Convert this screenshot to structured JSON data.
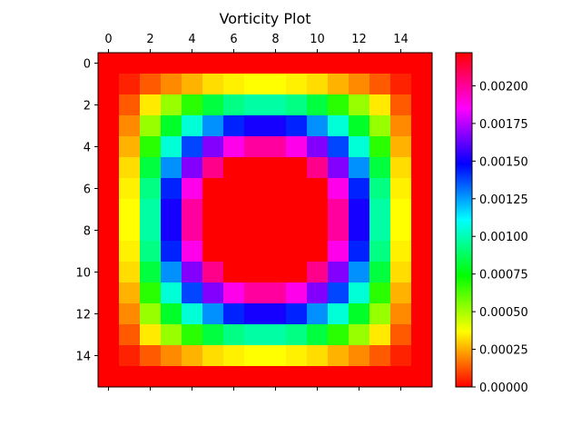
{
  "chart_data": {
    "type": "heatmap",
    "title": "Vorticity Plot",
    "xlabel": "",
    "ylabel": "",
    "grid": false,
    "x_axis_position": "top",
    "xticks": [
      0,
      2,
      4,
      6,
      8,
      10,
      12,
      14
    ],
    "yticks": [
      0,
      2,
      4,
      6,
      8,
      10,
      12,
      14
    ],
    "xlim": [
      -0.5,
      15.5
    ],
    "ylim": [
      15.5,
      -0.5
    ],
    "colormap": "hsv",
    "colorbar": {
      "range": [
        0.0,
        0.00222
      ],
      "ticks": [
        "0.00000",
        "0.00025",
        "0.00050",
        "0.00075",
        "0.00100",
        "0.00125",
        "0.00150",
        "0.00175",
        "0.00200"
      ],
      "tick_values": [
        0.0,
        0.00025,
        0.0005,
        0.00075,
        0.001,
        0.00125,
        0.0015,
        0.00175,
        0.002
      ]
    },
    "rows": 16,
    "cols": 16,
    "values": [
      [
        0,
        0,
        0,
        0,
        0,
        0,
        0,
        0,
        0,
        0,
        0,
        0,
        0,
        0,
        0,
        0
      ],
      [
        0,
        5e-05,
        0.00013,
        0.0002,
        0.00026,
        0.00032,
        0.00035,
        0.00037,
        0.00037,
        0.00035,
        0.00032,
        0.00026,
        0.0002,
        0.00013,
        5e-05,
        0
      ],
      [
        0,
        0.00013,
        0.00034,
        0.00052,
        0.00068,
        0.00083,
        0.00093,
        0.00098,
        0.00098,
        0.00093,
        0.00083,
        0.00068,
        0.00052,
        0.00034,
        0.00013,
        0
      ],
      [
        0,
        0.0002,
        0.00052,
        0.0008,
        0.00105,
        0.00127,
        0.00143,
        0.00151,
        0.00151,
        0.00143,
        0.00127,
        0.00105,
        0.0008,
        0.00052,
        0.0002,
        0
      ],
      [
        0,
        0.00026,
        0.00068,
        0.00105,
        0.00138,
        0.00167,
        0.00188,
        0.00199,
        0.00199,
        0.00188,
        0.00167,
        0.00138,
        0.00105,
        0.00068,
        0.00026,
        0
      ],
      [
        0,
        0.00032,
        0.00083,
        0.00127,
        0.00167,
        0.00202,
        0.00228,
        0.0024,
        0.0024,
        0.00228,
        0.00202,
        0.00167,
        0.00127,
        0.00083,
        0.00032,
        0
      ],
      [
        0,
        0.00035,
        0.00093,
        0.00143,
        0.00188,
        0.00228,
        0.00256,
        0.0027,
        0.0027,
        0.00256,
        0.00228,
        0.00188,
        0.00143,
        0.00093,
        0.00035,
        0
      ],
      [
        0,
        0.00037,
        0.00098,
        0.00151,
        0.00199,
        0.0024,
        0.0027,
        0.00285,
        0.00285,
        0.0027,
        0.0024,
        0.00199,
        0.00151,
        0.00098,
        0.00037,
        0
      ],
      [
        0,
        0.00037,
        0.00098,
        0.00151,
        0.00199,
        0.0024,
        0.0027,
        0.00285,
        0.00285,
        0.0027,
        0.0024,
        0.00199,
        0.00151,
        0.00098,
        0.00037,
        0
      ],
      [
        0,
        0.00035,
        0.00093,
        0.00143,
        0.00188,
        0.00228,
        0.00256,
        0.0027,
        0.0027,
        0.00256,
        0.00228,
        0.00188,
        0.00143,
        0.00093,
        0.00035,
        0
      ],
      [
        0,
        0.00032,
        0.00083,
        0.00127,
        0.00167,
        0.00202,
        0.00228,
        0.0024,
        0.0024,
        0.00228,
        0.00202,
        0.00167,
        0.00127,
        0.00083,
        0.00032,
        0
      ],
      [
        0,
        0.00026,
        0.00068,
        0.00105,
        0.00138,
        0.00167,
        0.00188,
        0.00199,
        0.00199,
        0.00188,
        0.00167,
        0.00138,
        0.00105,
        0.00068,
        0.00026,
        0
      ],
      [
        0,
        0.0002,
        0.00052,
        0.0008,
        0.00105,
        0.00127,
        0.00143,
        0.00151,
        0.00151,
        0.00143,
        0.00127,
        0.00105,
        0.0008,
        0.00052,
        0.0002,
        0
      ],
      [
        0,
        0.00013,
        0.00034,
        0.00052,
        0.00068,
        0.00083,
        0.00093,
        0.00098,
        0.00098,
        0.00093,
        0.00083,
        0.00068,
        0.00052,
        0.00034,
        0.00013,
        0
      ],
      [
        0,
        5e-05,
        0.00013,
        0.0002,
        0.00026,
        0.00032,
        0.00035,
        0.00037,
        0.00037,
        0.00035,
        0.00032,
        0.00026,
        0.0002,
        0.00013,
        5e-05,
        0
      ],
      [
        0,
        0,
        0,
        0,
        0,
        0,
        0,
        0,
        0,
        0,
        0,
        0,
        0,
        0,
        0,
        0
      ]
    ]
  }
}
